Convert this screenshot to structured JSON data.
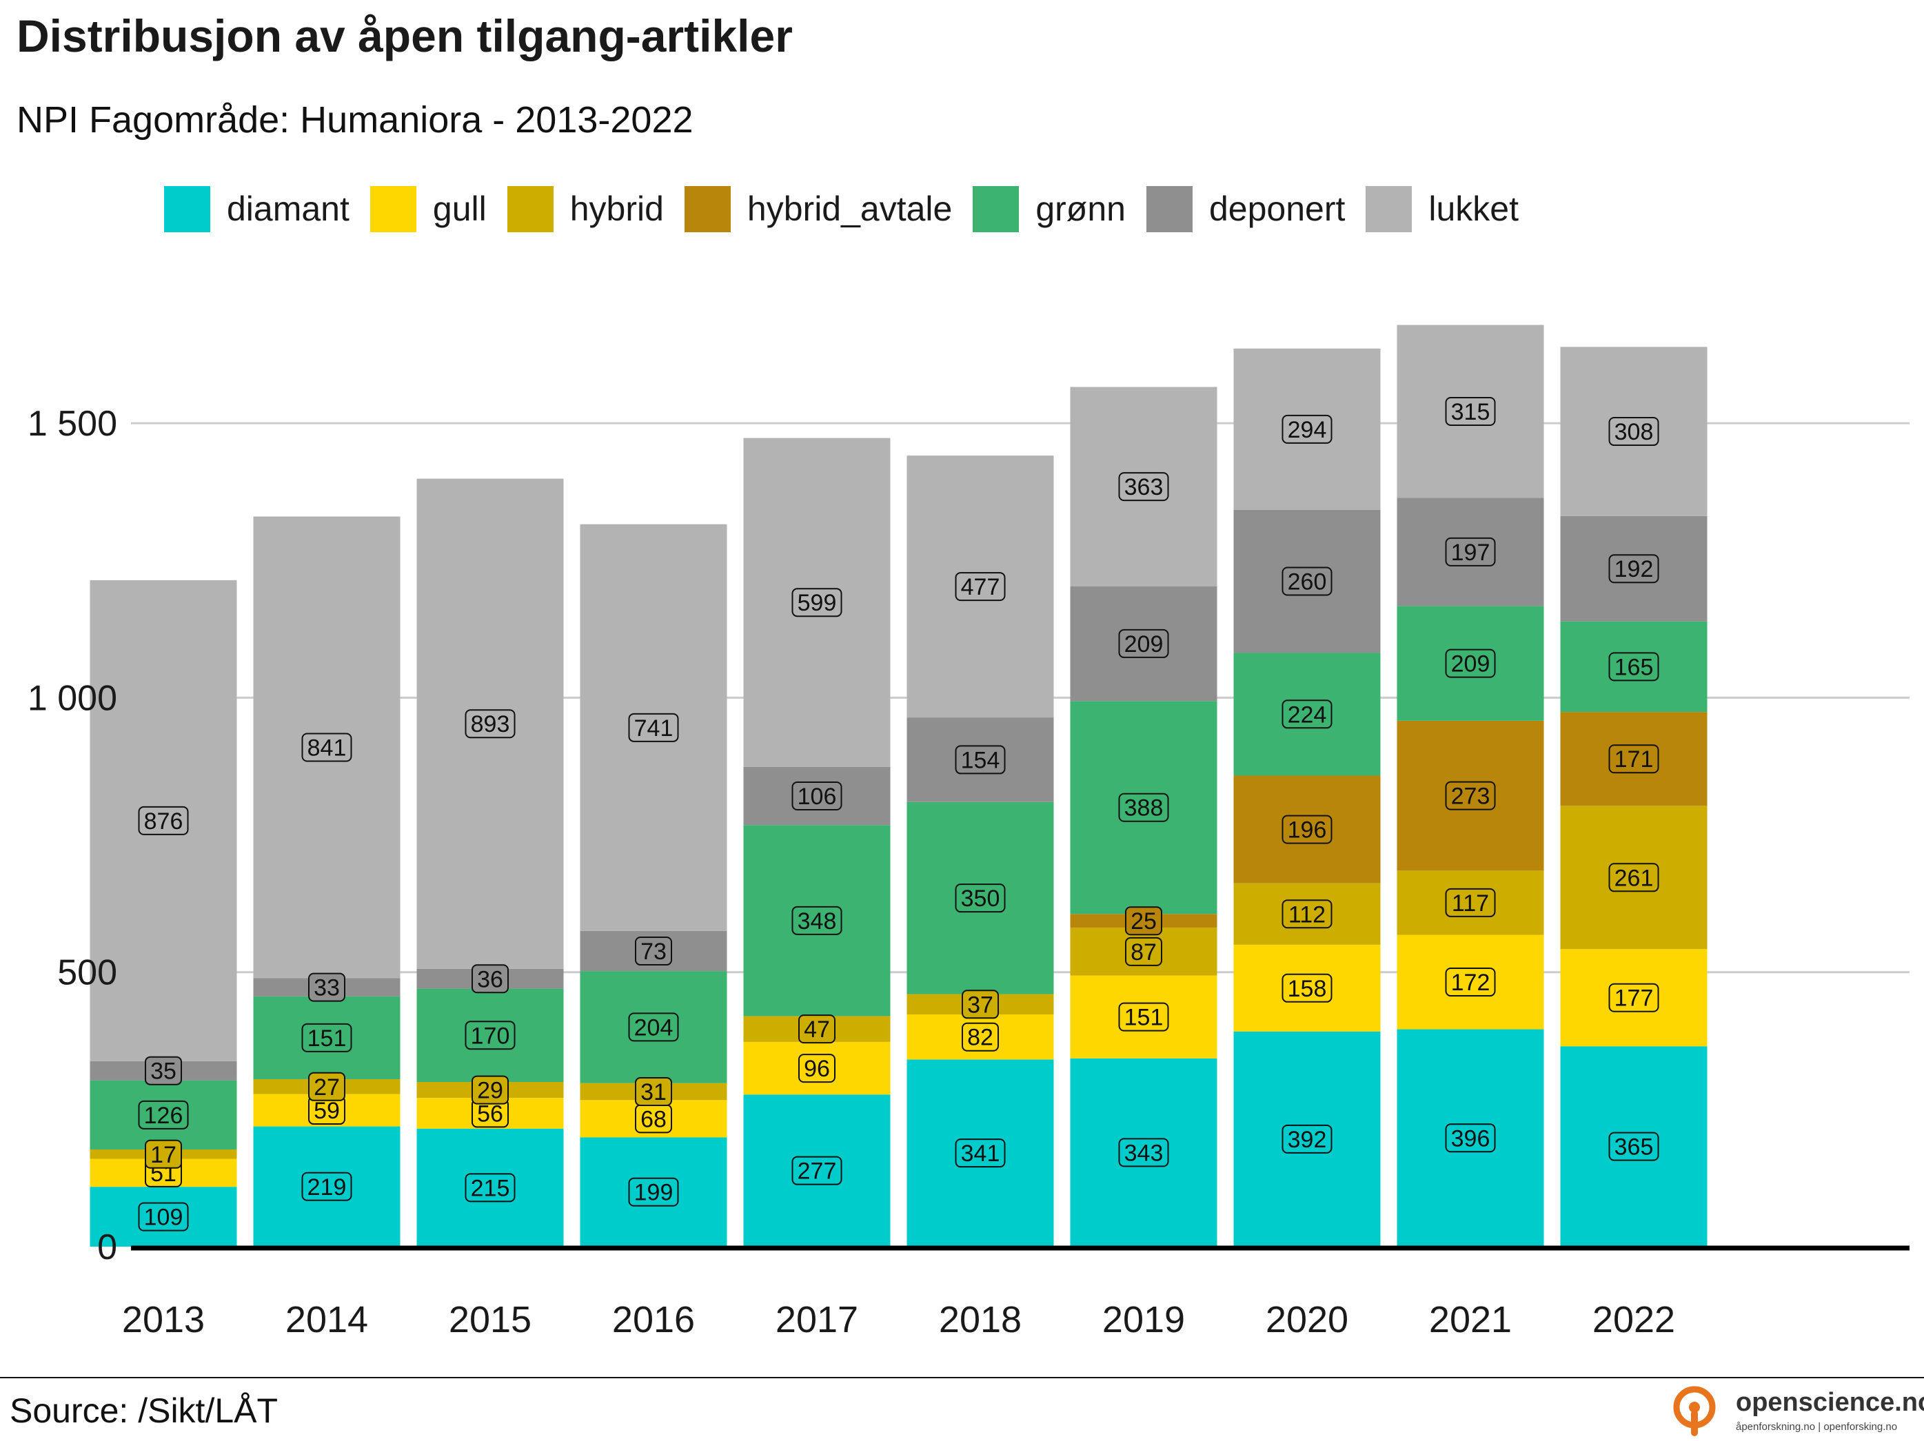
{
  "header": {
    "title": "Distribusjon av åpen tilgang-artikler",
    "subtitle": "NPI Fagområde: Humaniora - 2013-2022"
  },
  "footer": {
    "source": "Source: /Sikt/LÅT",
    "brand_name": "openscience.no",
    "brand_tagline": "åpenforskning.no | openforsking.no"
  },
  "colors": {
    "diamant": "#00CCCC",
    "gull": "#FFD700",
    "hybrid": "#CCAD00",
    "hybrid_avtale": "#B8860B",
    "grønn": "#3CB371",
    "deponert": "#8F8F8F",
    "lukket": "#B3B3B3",
    "brand": "#E8741E"
  },
  "chart_data": {
    "type": "bar",
    "stacked": true,
    "categories": [
      "2013",
      "2014",
      "2015",
      "2016",
      "2017",
      "2018",
      "2019",
      "2020",
      "2021",
      "2022"
    ],
    "series": [
      {
        "name": "diamant",
        "values": [
          109,
          219,
          215,
          199,
          277,
          341,
          343,
          392,
          396,
          365
        ]
      },
      {
        "name": "gull",
        "values": [
          51,
          59,
          56,
          68,
          96,
          82,
          151,
          158,
          172,
          177
        ]
      },
      {
        "name": "hybrid",
        "values": [
          17,
          27,
          29,
          31,
          47,
          37,
          87,
          112,
          117,
          261
        ]
      },
      {
        "name": "hybrid_avtale",
        "values": [
          0,
          0,
          0,
          0,
          0,
          0,
          25,
          196,
          273,
          171
        ]
      },
      {
        "name": "grønn",
        "values": [
          126,
          151,
          170,
          204,
          348,
          350,
          388,
          224,
          209,
          165
        ]
      },
      {
        "name": "deponert",
        "values": [
          35,
          33,
          36,
          73,
          106,
          154,
          209,
          260,
          197,
          192
        ]
      },
      {
        "name": "lukket",
        "values": [
          876,
          841,
          893,
          741,
          599,
          477,
          363,
          294,
          315,
          308
        ]
      }
    ],
    "yticks": [
      0,
      500,
      1000,
      1500
    ],
    "ytick_labels": [
      "0",
      "500",
      "1 000",
      "1 500"
    ],
    "ylim": [
      0,
      1680
    ],
    "grid": "horizontal",
    "legend_position": "top",
    "data_labels": true
  }
}
